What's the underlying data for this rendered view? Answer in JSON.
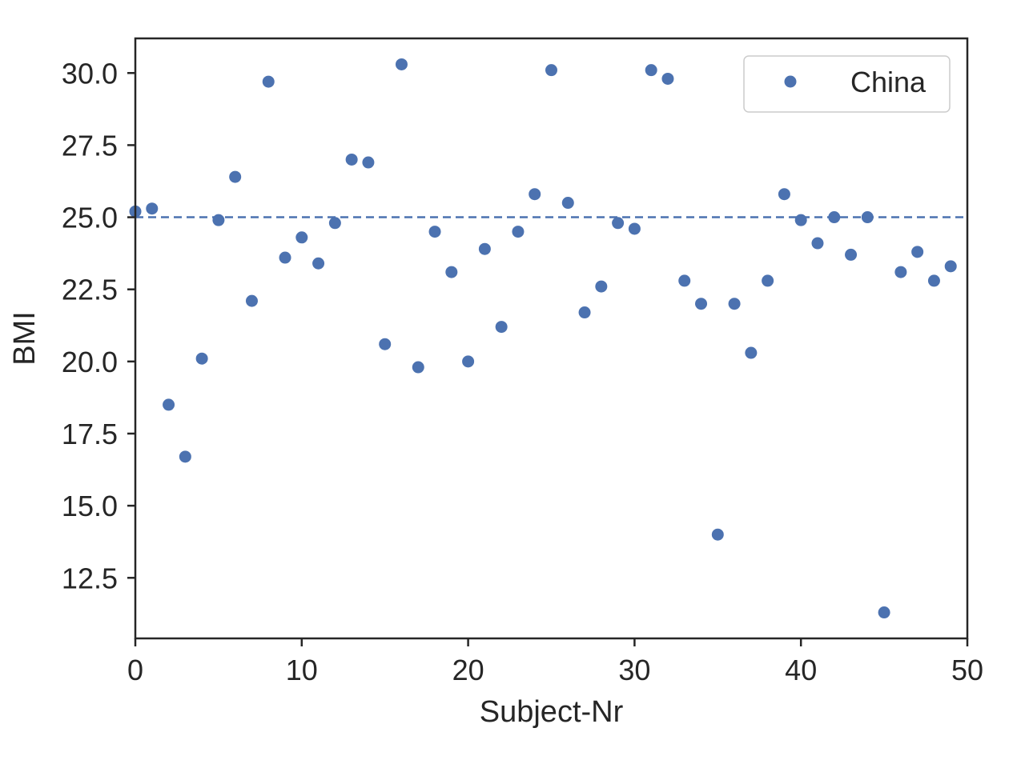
{
  "chart_data": {
    "type": "scatter",
    "title": "",
    "xlabel": "Subject-Nr",
    "ylabel": "BMI",
    "xlim": [
      0,
      50
    ],
    "ylim": [
      10.4,
      31.2
    ],
    "x_ticks": [
      0,
      10,
      20,
      30,
      40,
      50
    ],
    "x_tick_labels": [
      "0",
      "10",
      "20",
      "30",
      "40",
      "50"
    ],
    "y_ticks": [
      12.5,
      15.0,
      17.5,
      20.0,
      22.5,
      25.0,
      27.5,
      30.0
    ],
    "y_tick_labels": [
      "12.5",
      "15.0",
      "17.5",
      "20.0",
      "22.5",
      "25.0",
      "27.5",
      "30.0"
    ],
    "grid": false,
    "legend_position": "top-right",
    "reference_line": {
      "y": 25.0,
      "style": "dashed",
      "color": "#4c72b0"
    },
    "series": [
      {
        "name": "China",
        "color": "#4c72b0",
        "marker": "circle",
        "x": [
          0,
          1,
          2,
          3,
          4,
          5,
          6,
          7,
          8,
          9,
          10,
          11,
          12,
          13,
          14,
          15,
          16,
          17,
          18,
          19,
          20,
          21,
          22,
          23,
          24,
          25,
          26,
          27,
          28,
          29,
          30,
          31,
          32,
          33,
          34,
          35,
          36,
          37,
          38,
          39,
          40,
          41,
          42,
          43,
          44,
          45,
          46,
          47,
          48,
          49
        ],
        "y": [
          25.2,
          25.3,
          18.5,
          16.7,
          20.1,
          24.9,
          26.4,
          22.1,
          29.7,
          23.6,
          24.3,
          23.4,
          24.8,
          27.0,
          26.9,
          20.6,
          30.3,
          19.8,
          24.5,
          23.1,
          20.0,
          23.9,
          21.2,
          24.5,
          25.8,
          30.1,
          25.5,
          21.7,
          22.6,
          24.8,
          24.6,
          30.1,
          29.8,
          22.8,
          22.0,
          14.0,
          22.0,
          20.3,
          22.8,
          25.8,
          24.9,
          24.1,
          25.0,
          23.7,
          25.0,
          11.3,
          23.1,
          23.8,
          22.8,
          23.3
        ]
      }
    ]
  }
}
